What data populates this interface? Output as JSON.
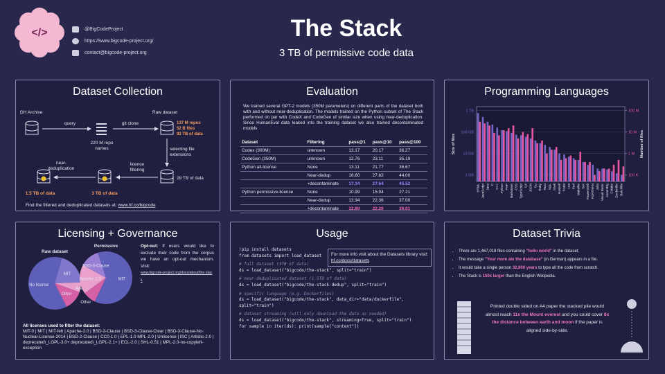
{
  "header": {
    "title": "The Stack",
    "subtitle": "3 TB of permissive code data",
    "contacts": [
      "@BigCodeProject",
      "https://www.bigcode-project.org/",
      "contact@bigcode-project.org"
    ]
  },
  "collection": {
    "title": "Dataset Collection",
    "gh": "GH Archive",
    "query": "query",
    "repo_names": [
      "220 M repo",
      "names"
    ],
    "git_clone": "git clone",
    "raw": "Raw dataset",
    "raw_stats": [
      "137 M repos",
      "52 B files",
      "92 TB of data"
    ],
    "select": [
      "selecting file",
      "extensions"
    ],
    "size_28": "28 TB of data",
    "licence": [
      "licence",
      "filtering"
    ],
    "dedup": [
      "near-",
      "deduplication"
    ],
    "size_3": "3 TB of data",
    "size_15": "1.5 TB of data",
    "footer": "Find the filtered and deduplicated datasets at:",
    "link": "www.hf.co/bigcode"
  },
  "evaluation": {
    "title": "Evaluation",
    "text": "We trained several GPT-2 models (350M parameters) on different parts of the dataset both with and without near-deduplication. The models trained on the Python subset of The Stack performed on par with CodeX and CodeGen of similar size when using near-deduplication. Since HumanEval data leaked into the training dataset we also trained decontaminated models",
    "columns": [
      "Dataset",
      "Filtering",
      "pass@1",
      "pass@10",
      "pass@100"
    ],
    "rows": [
      [
        "Codex (300M)",
        "unknown",
        "13.17",
        "20.17",
        "36.27"
      ],
      [
        "CodeGen (350M)",
        "unknown",
        "12.76",
        "23.11",
        "35.19"
      ],
      [
        "Python all-license",
        "None",
        "13.11",
        "21.77",
        "36.67"
      ],
      [
        null,
        "Near-dedup",
        "16.60",
        "27.82",
        "44.00"
      ],
      [
        null,
        "+decontaminate",
        "17.34",
        "27.64",
        "45.52"
      ],
      [
        "Python permissive-license",
        "None",
        "10.99",
        "15.94",
        "27.21"
      ],
      [
        null,
        "Near-dedup",
        "13.94",
        "22.36",
        "37.00"
      ],
      [
        null,
        "+decontaminate",
        "12.89",
        "22.26",
        "36.01"
      ]
    ]
  },
  "languages": {
    "title": "Programming Languages"
  },
  "licensing": {
    "title": "Licensing + Governance",
    "optout": [
      "Opt-out:",
      " If users would like to exclude their code from the corpus we have an opt-out mechanism. Visit:"
    ],
    "optout_link": "www.bigcode-project.org/docs/about/the-stack",
    "list_title": "All licenses used to filter the dataset:",
    "list": "MIT-0 | MIT | MIT-feh | Apache-2.0 | BSD-3-Clause | BSD-3-Clause-Clear | BSD-3-Clause-No-Nuclear-License-2014 | BSD-2-Clause | CC0-1.0 | EPL-1.0 MPL-2.0 | Unlicense | ISC | Artistic-2.0 | deprecated\\_LGPL-3.0+ deprecated\\_LGPL-2.1+ | ECL-2.0 | SHL-0.51 | MPL-2.0-no-copyleft-exception"
  },
  "usage": {
    "title": "Usage",
    "note": "For more info visit about the Datasets library visit:",
    "note_link": "hf.co/docs/datasets",
    "code": [
      "!pip install datasets",
      "from datasets import load_dataset",
      "# full dataset (3TB of data)",
      "ds = load_dataset(\"bigcode/the-stack\", split=\"train\")",
      "# near-deduplicated dataset (1.5TB of data)",
      "ds = load_dataset(\"bigcode/the-stack-dedup\", split=\"train\")",
      "# specific language (e.g. Dockerfiles)",
      "ds = load_dataset(\"bigcode/the-stack\", data_dir=\"data/dockerfile\", split=\"train\")",
      "# dataset streaming (will only download the data as needed)",
      "ds = load_dataset(\"bigcode/the-stack\", streaming=True, split=\"train\")",
      "for sample in iter(ds): print(sample[\"content\"])"
    ]
  },
  "trivia": {
    "title": "Dataset Trivia",
    "bullets": [
      [
        "There are 1,467,018 files containing ",
        "\"hello world\"",
        " in the dataset."
      ],
      [
        "The message ",
        "\"Your mom ate the database\"",
        " (in German) appears in a file."
      ],
      [
        "It would take a single person ",
        "32,800 years",
        " to type all the code from scratch."
      ],
      [
        "The Stack is ",
        "150x larger",
        " than the English Wikipedia."
      ]
    ],
    "paper": [
      "Printed double sided on A4 paper the stacked pile would almost reach ",
      "11x the Mount everest",
      " and you could cover ",
      "8x the distance between earth and moon",
      " if the paper is aligned side-by-side."
    ]
  },
  "chart_data": [
    {
      "type": "bar",
      "log_scale": true,
      "grid": true,
      "categories": [
        "HTML",
        "JavaScript",
        "Java",
        "C",
        "C++",
        "Python",
        "PHP",
        "Markdown",
        "CSS",
        "TypeScript",
        "C#",
        "JSON",
        "Go",
        "Ruby",
        "Rust",
        "SQL",
        "Shell",
        "Haskell",
        "Scala",
        "Lua",
        "Perl",
        "Makefile",
        "TeX",
        "PowerShell",
        "FORTRAN",
        "Julia",
        "Visual Basic",
        "Assembly",
        "CMake",
        "Dockerfile",
        "Batchfile"
      ],
      "series": [
        {
          "name": "Size of files",
          "color": "#7466c8",
          "values": [
            750,
            500,
            300,
            220,
            160,
            120,
            110,
            90,
            75,
            70,
            60,
            50,
            40,
            30,
            25,
            20,
            15,
            10,
            9,
            7,
            6,
            5,
            4,
            3,
            3,
            2,
            2,
            1.8,
            1.5,
            1.2,
            1
          ]
        },
        {
          "name": "Number of files",
          "color": "#e2579f",
          "axis": "y2",
          "values": [
            30000000,
            25000000,
            20000000,
            9000000,
            7000000,
            12000000,
            15000000,
            20000000,
            5000000,
            10000000,
            8000000,
            15000000,
            3000000,
            4000000,
            1000000,
            1500000,
            2000000,
            500000,
            600000,
            800000,
            500000,
            1200000,
            400000,
            400000,
            100000,
            150000,
            200000,
            200000,
            300000,
            500000,
            250000
          ]
        }
      ],
      "ylim": [
        0.5,
        1500
      ],
      "yticks": [
        {
          "value": 1,
          "label": "1 GB"
        },
        {
          "value": 10,
          "label": "10 GB"
        },
        {
          "value": 100,
          "label": "100 GB"
        },
        {
          "value": 1000,
          "label": "1 TB"
        }
      ],
      "y2lim": [
        50000,
        150000000
      ],
      "y2ticks": [
        {
          "value": 100000,
          "label": "100 K"
        },
        {
          "value": 1000000,
          "label": "1 M"
        },
        {
          "value": 10000000,
          "label": "10 M"
        },
        {
          "value": 100000000,
          "label": "100 M"
        }
      ]
    },
    {
      "type": "pie",
      "title": "Raw dataset",
      "categories": [
        "No license",
        "MIT",
        "Apache 2.0",
        "Other"
      ],
      "values": [
        62,
        20,
        6,
        12
      ],
      "colors": [
        "#5d5fb8",
        "#7f78cc",
        "#e9a0cc",
        "#d660a6"
      ]
    },
    {
      "type": "pie",
      "title": "Permissive",
      "categories": [
        "MIT",
        "Other",
        "Apache 2.0",
        "BSD-3-Clause"
      ],
      "values": [
        62,
        8,
        18,
        12
      ],
      "colors": [
        "#5d5fb8",
        "#d660a6",
        "#e9a0cc",
        "#9a7fd6"
      ]
    }
  ]
}
